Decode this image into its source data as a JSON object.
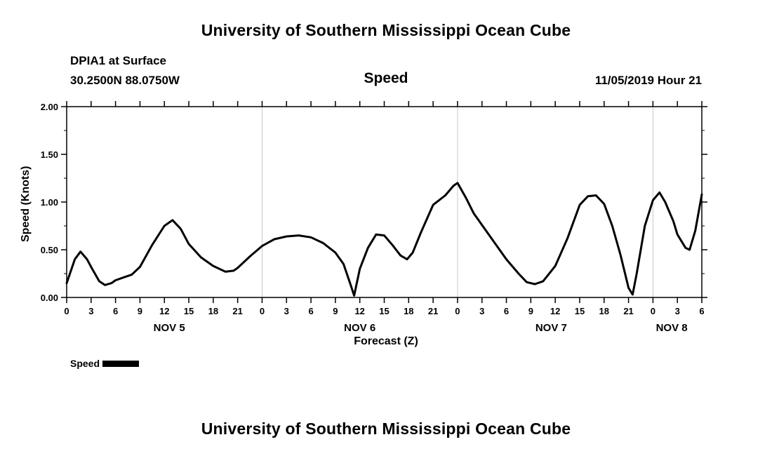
{
  "page": {
    "top_title": "University of Southern Mississippi Ocean Cube",
    "bottom_title": "University of Southern Mississippi Ocean Cube"
  },
  "header": {
    "station": "DPIA1 at Surface",
    "coords": "30.2500N 88.0750W",
    "chart_title": "Speed",
    "datetime": "11/05/2019 Hour 21"
  },
  "legend": {
    "label": "Speed",
    "swatch_color": "#000000"
  },
  "chart_data": {
    "type": "line",
    "title": "Speed",
    "xlabel": "Forecast (Z)",
    "ylabel": "Speed (Knots)",
    "ylim": [
      0.0,
      2.0
    ],
    "x_range": [
      0,
      78
    ],
    "grid": "light vertical lines at day boundaries",
    "legend_position": "bottom-left",
    "line_color": "#000000",
    "grid_color": "#c8c8c8",
    "grid_hours": [
      24,
      48,
      72
    ],
    "y_ticks": [
      {
        "label": "0.00",
        "value": 0.0
      },
      {
        "label": "0.50",
        "value": 0.5
      },
      {
        "label": "1.00",
        "value": 1.0
      },
      {
        "label": "1.50",
        "value": 1.5
      },
      {
        "label": "2.00",
        "value": 2.0
      }
    ],
    "y_minor": [
      0.25,
      0.75,
      1.25,
      1.75
    ],
    "x_ticks": [
      {
        "label": "0",
        "hour": 0
      },
      {
        "label": "3",
        "hour": 3
      },
      {
        "label": "6",
        "hour": 6
      },
      {
        "label": "9",
        "hour": 9
      },
      {
        "label": "12",
        "hour": 12
      },
      {
        "label": "15",
        "hour": 15
      },
      {
        "label": "18",
        "hour": 18
      },
      {
        "label": "21",
        "hour": 21
      },
      {
        "label": "0",
        "hour": 24
      },
      {
        "label": "3",
        "hour": 27
      },
      {
        "label": "6",
        "hour": 30
      },
      {
        "label": "9",
        "hour": 33
      },
      {
        "label": "12",
        "hour": 36
      },
      {
        "label": "15",
        "hour": 39
      },
      {
        "label": "18",
        "hour": 42
      },
      {
        "label": "21",
        "hour": 45
      },
      {
        "label": "0",
        "hour": 48
      },
      {
        "label": "3",
        "hour": 51
      },
      {
        "label": "6",
        "hour": 54
      },
      {
        "label": "9",
        "hour": 57
      },
      {
        "label": "12",
        "hour": 60
      },
      {
        "label": "15",
        "hour": 63
      },
      {
        "label": "18",
        "hour": 66
      },
      {
        "label": "21",
        "hour": 69
      },
      {
        "label": "0",
        "hour": 72
      },
      {
        "label": "3",
        "hour": 75
      },
      {
        "label": "6",
        "hour": 78
      }
    ],
    "day_labels": [
      {
        "label": "NOV 5",
        "hour": 12.6
      },
      {
        "label": "NOV 6",
        "hour": 36.0
      },
      {
        "label": "NOV 7",
        "hour": 59.5
      },
      {
        "label": "NOV 8",
        "hour": 74.3
      }
    ],
    "series": [
      {
        "name": "Speed",
        "color": "#000000",
        "points": [
          [
            0,
            0.15
          ],
          [
            1,
            0.4
          ],
          [
            1.7,
            0.48
          ],
          [
            2.5,
            0.4
          ],
          [
            3,
            0.32
          ],
          [
            4,
            0.17
          ],
          [
            4.7,
            0.13
          ],
          [
            5.5,
            0.15
          ],
          [
            6,
            0.18
          ],
          [
            7,
            0.21
          ],
          [
            8,
            0.24
          ],
          [
            9,
            0.32
          ],
          [
            10.5,
            0.55
          ],
          [
            12,
            0.75
          ],
          [
            13,
            0.81
          ],
          [
            14,
            0.72
          ],
          [
            15,
            0.56
          ],
          [
            16.5,
            0.42
          ],
          [
            18,
            0.33
          ],
          [
            19.5,
            0.27
          ],
          [
            20.5,
            0.28
          ],
          [
            21,
            0.31
          ],
          [
            22.5,
            0.43
          ],
          [
            24,
            0.54
          ],
          [
            25.5,
            0.61
          ],
          [
            27,
            0.64
          ],
          [
            28.5,
            0.65
          ],
          [
            30,
            0.63
          ],
          [
            31.5,
            0.57
          ],
          [
            33,
            0.47
          ],
          [
            34,
            0.35
          ],
          [
            34.8,
            0.15
          ],
          [
            35.3,
            0.02
          ],
          [
            36,
            0.3
          ],
          [
            37,
            0.52
          ],
          [
            38,
            0.66
          ],
          [
            39,
            0.65
          ],
          [
            40,
            0.55
          ],
          [
            41,
            0.44
          ],
          [
            41.8,
            0.4
          ],
          [
            42.5,
            0.47
          ],
          [
            43.5,
            0.68
          ],
          [
            45,
            0.97
          ],
          [
            46.5,
            1.07
          ],
          [
            47.5,
            1.17
          ],
          [
            48,
            1.2
          ],
          [
            49,
            1.05
          ],
          [
            50,
            0.88
          ],
          [
            51,
            0.76
          ],
          [
            52.5,
            0.58
          ],
          [
            54,
            0.4
          ],
          [
            55.5,
            0.25
          ],
          [
            56.5,
            0.16
          ],
          [
            57.5,
            0.14
          ],
          [
            58.5,
            0.17
          ],
          [
            60,
            0.33
          ],
          [
            61.5,
            0.62
          ],
          [
            63,
            0.97
          ],
          [
            64,
            1.06
          ],
          [
            65,
            1.07
          ],
          [
            66,
            0.98
          ],
          [
            67,
            0.75
          ],
          [
            68,
            0.45
          ],
          [
            69,
            0.1
          ],
          [
            69.5,
            0.03
          ],
          [
            70,
            0.25
          ],
          [
            71,
            0.75
          ],
          [
            72,
            1.02
          ],
          [
            72.8,
            1.1
          ],
          [
            73.5,
            1.0
          ],
          [
            74.5,
            0.8
          ],
          [
            75,
            0.66
          ],
          [
            76,
            0.52
          ],
          [
            76.5,
            0.5
          ],
          [
            77.2,
            0.7
          ],
          [
            78,
            1.08
          ]
        ]
      }
    ]
  }
}
